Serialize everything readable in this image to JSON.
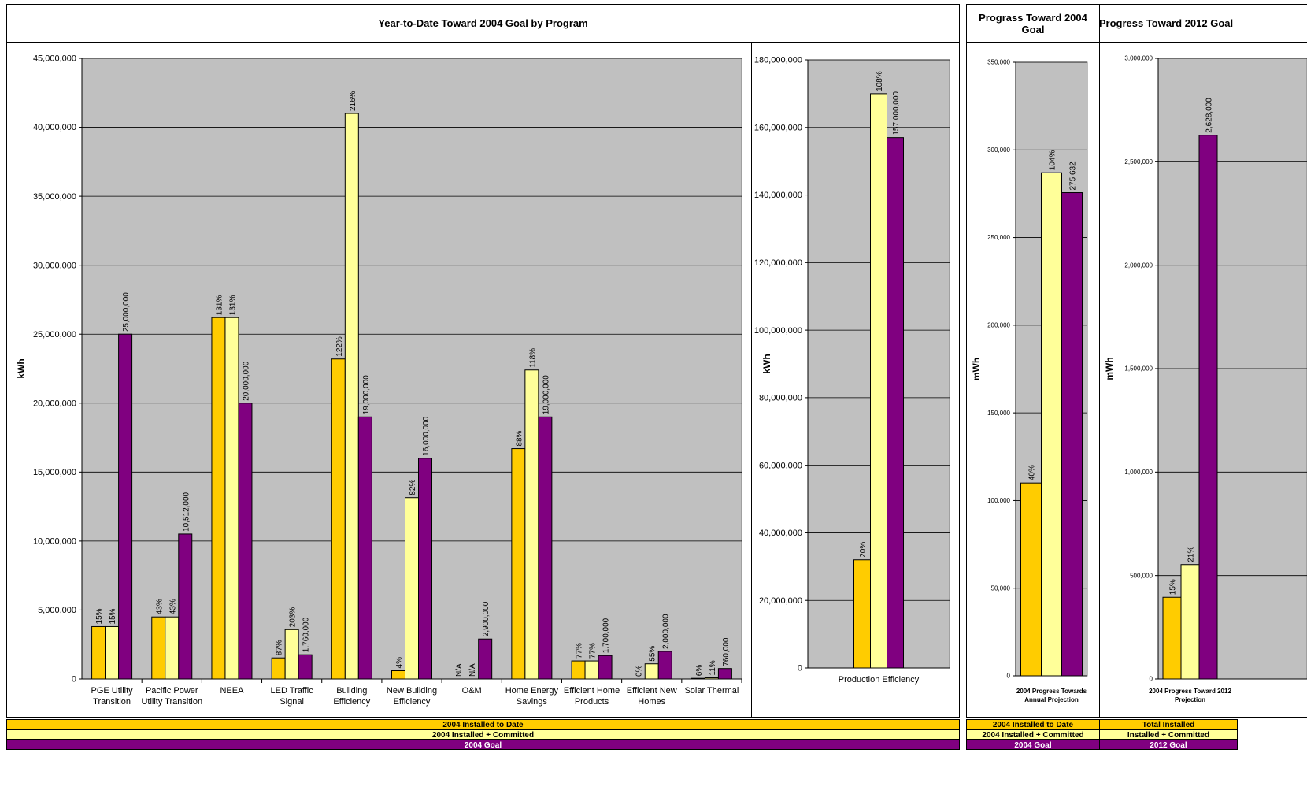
{
  "colors": {
    "installed": "#FFCC00",
    "committed": "#FFFF99",
    "goal": "#800080",
    "plot_bg": "#C0C0C0",
    "legend_goal_text": "#FFFFFF"
  },
  "main_title": "Year-to-Date Toward 2004 Goal by Program",
  "progress2004_title": "Prograss Toward 2004 Goal",
  "progress2012_title": "Progress Toward 2012 Goal",
  "legend_main": [
    "2004 Installed to Date",
    "2004 Installed + Committed",
    "2004 Goal"
  ],
  "legend_2004": [
    "2004 Installed to Date",
    "2004 Installed + Committed",
    "2004 Goal"
  ],
  "legend_2012": [
    "Total Installed",
    "Installed + Committed",
    "2012 Goal"
  ],
  "chart_data": [
    {
      "type": "bar",
      "ylabel": "kWh",
      "ylim": [
        0,
        45000000
      ],
      "yticks": [
        "0",
        "5,000,000",
        "10,000,000",
        "15,000,000",
        "20,000,000",
        "25,000,000",
        "30,000,000",
        "35,000,000",
        "40,000,000",
        "45,000,000"
      ],
      "categories": [
        [
          "PGE Utility",
          "Transition"
        ],
        [
          "Pacific Power",
          "Utility Transition"
        ],
        [
          "NEEA"
        ],
        [
          "LED Traffic",
          "Signal"
        ],
        [
          "Building",
          "Efficiency"
        ],
        [
          "New Building",
          "Efficiency"
        ],
        [
          "O&M"
        ],
        [
          "Home Energy",
          "Savings"
        ],
        [
          "Efficient Home",
          "Products"
        ],
        [
          "Efficient New",
          "Homes"
        ],
        [
          "Solar Thermal"
        ]
      ],
      "series": [
        {
          "name": "2004 Installed to Date",
          "values": [
            3800000,
            4500000,
            26200000,
            1530000,
            23200000,
            600000,
            0,
            16700000,
            1310000,
            0,
            46000
          ],
          "labels": [
            "15%",
            "43%",
            "131%",
            "87%",
            "122%",
            "4%",
            "N/A",
            "88%",
            "77%",
            "0%",
            "6%"
          ]
        },
        {
          "name": "2004 Installed + Committed",
          "values": [
            3800000,
            4500000,
            26200000,
            3580000,
            41000000,
            13150000,
            0,
            22400000,
            1310000,
            1100000,
            84000
          ],
          "labels": [
            "15%",
            "43%",
            "131%",
            "203%",
            "216%",
            "82%",
            "N/A",
            "118%",
            "77%",
            "55%",
            "11%"
          ]
        },
        {
          "name": "2004 Goal",
          "values": [
            25000000,
            10512000,
            20000000,
            1760000,
            19000000,
            16000000,
            2900000,
            19000000,
            1700000,
            2000000,
            760000
          ],
          "labels": [
            "25,000,000",
            "10,512,000",
            "20,000,000",
            "1,760,000",
            "19,000,000",
            "16,000,000",
            "2,900,000",
            "19,000,000",
            "1,700,000",
            "2,000,000",
            "760,000"
          ]
        }
      ]
    },
    {
      "type": "bar",
      "ylabel": "kWh",
      "ylim": [
        0,
        180000000
      ],
      "yticks": [
        "0",
        "20,000,000",
        "40,000,000",
        "60,000,000",
        "80,000,000",
        "100,000,000",
        "120,000,000",
        "140,000,000",
        "160,000,000",
        "180,000,000"
      ],
      "categories": [
        [
          "Production Efficiency"
        ]
      ],
      "series": [
        {
          "name": "2004 Installed to Date",
          "values": [
            32000000
          ],
          "labels": [
            "20%"
          ]
        },
        {
          "name": "2004 Installed + Committed",
          "values": [
            170000000
          ],
          "labels": [
            "108%"
          ]
        },
        {
          "name": "2004 Goal",
          "values": [
            157000000
          ],
          "labels": [
            "157,000,000"
          ]
        }
      ]
    },
    {
      "type": "bar",
      "ylabel": "mWh",
      "ylim": [
        0,
        350000
      ],
      "yticks": [
        "0",
        "50,000",
        "100,000",
        "150,000",
        "200,000",
        "250,000",
        "300,000",
        "350,000"
      ],
      "categories": [
        [
          "2004 Progress Towards",
          "Annual Projection"
        ]
      ],
      "series": [
        {
          "name": "2004 Installed to Date",
          "values": [
            110000
          ],
          "labels": [
            "40%"
          ]
        },
        {
          "name": "2004 Installed + Committed",
          "values": [
            287000
          ],
          "labels": [
            "104%"
          ]
        },
        {
          "name": "2004 Goal",
          "values": [
            275632
          ],
          "labels": [
            "275,632"
          ]
        }
      ]
    },
    {
      "type": "bar",
      "ylabel": "mWh",
      "ylim": [
        0,
        3000000
      ],
      "yticks": [
        "0",
        "500,000",
        "1,000,000",
        "1,500,000",
        "2,000,000",
        "2,500,000",
        "3,000,000"
      ],
      "categories": [
        [
          "2004 Progress Toward 2012",
          "Projection"
        ]
      ],
      "series": [
        {
          "name": "Total Installed",
          "values": [
            395000
          ],
          "labels": [
            "15%"
          ]
        },
        {
          "name": "Installed + Committed",
          "values": [
            553000
          ],
          "labels": [
            "21%"
          ]
        },
        {
          "name": "2012 Goal",
          "values": [
            2628000
          ],
          "labels": [
            "2,628,000"
          ]
        }
      ]
    }
  ]
}
